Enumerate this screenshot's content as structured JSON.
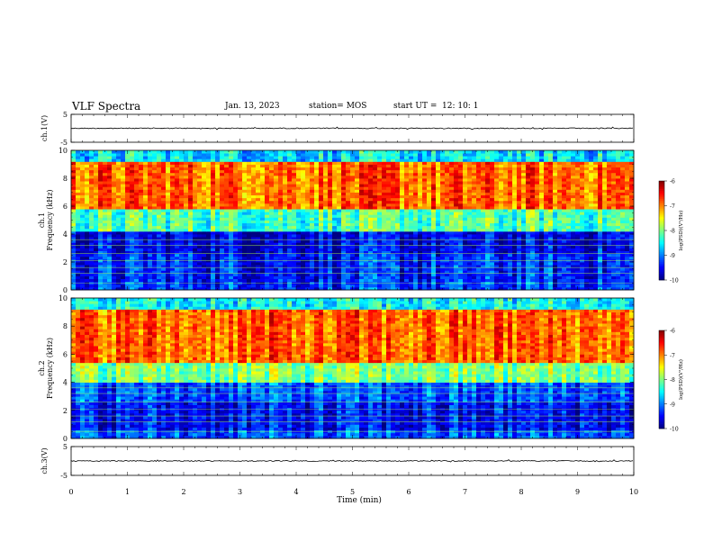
{
  "header": {
    "title": "VLF Spectra",
    "date": "Jan. 13, 2023",
    "station": "station= MOS",
    "start_label": "start  UT =",
    "start_time": "12: 10: 1"
  },
  "chart_data": {
    "type": "heatmap",
    "time_axis": {
      "label": "Time (min)",
      "range": [
        0,
        10
      ],
      "ticks": [
        "0",
        "1",
        "2",
        "3",
        "4",
        "5",
        "6",
        "7",
        "8",
        "9",
        "10"
      ]
    },
    "panels": [
      {
        "id": "ch1-waveform",
        "type": "line",
        "ylabel": "ch.1(V)",
        "ylim": [
          -5,
          5
        ],
        "yticks": [
          "5",
          "-5"
        ],
        "baseline_value": 0
      },
      {
        "id": "ch1-spectrogram",
        "type": "heatmap",
        "ylabel_top": "ch.1",
        "ylabel": "Frequency (kHz)",
        "ylim": [
          0,
          10
        ],
        "yticks": [
          "0",
          "2",
          "4",
          "6",
          "8",
          "10"
        ],
        "colorbar": {
          "label": "log(PSD)(V²/Hz)",
          "range": [
            -10,
            -6
          ],
          "ticks": [
            "-6",
            "-7",
            "-8",
            "-9",
            "-10"
          ]
        },
        "bands": [
          {
            "range": [
              0,
              0.6
            ],
            "level": -9.3
          },
          {
            "range": [
              0.6,
              2.6
            ],
            "level": -9.4
          },
          {
            "range": [
              2.6,
              4.2
            ],
            "level": -9.6
          },
          {
            "range": [
              4.2,
              5.8
            ],
            "level": -8.2
          },
          {
            "range": [
              5.8,
              9.2
            ],
            "level": -6.9
          },
          {
            "range": [
              9.2,
              10
            ],
            "level": -8.6
          }
        ]
      },
      {
        "id": "ch2-spectrogram",
        "type": "heatmap",
        "ylabel_top": "ch.2",
        "ylabel": "Frequency (kHz)",
        "ylim": [
          0,
          10
        ],
        "yticks": [
          "0",
          "2",
          "4",
          "6",
          "8",
          "10"
        ],
        "colorbar": {
          "label": "log(PSD)(V²/Hz)",
          "range": [
            -10,
            -6
          ],
          "ticks": [
            "-6",
            "-7",
            "-8",
            "-9",
            "-10"
          ]
        },
        "bands": [
          {
            "range": [
              0,
              0.6
            ],
            "level": -9.2
          },
          {
            "range": [
              0.6,
              2.6
            ],
            "level": -9.5
          },
          {
            "range": [
              2.6,
              4.0
            ],
            "level": -9.2
          },
          {
            "range": [
              4.0,
              5.5
            ],
            "level": -8.0
          },
          {
            "range": [
              5.5,
              9.2
            ],
            "level": -6.9
          },
          {
            "range": [
              9.2,
              10
            ],
            "level": -8.5
          }
        ]
      },
      {
        "id": "ch3-waveform",
        "type": "line",
        "ylabel": "ch.3(V)",
        "ylim": [
          -5,
          5
        ],
        "yticks": [
          "5",
          "-5"
        ],
        "baseline_value": 0
      }
    ]
  }
}
